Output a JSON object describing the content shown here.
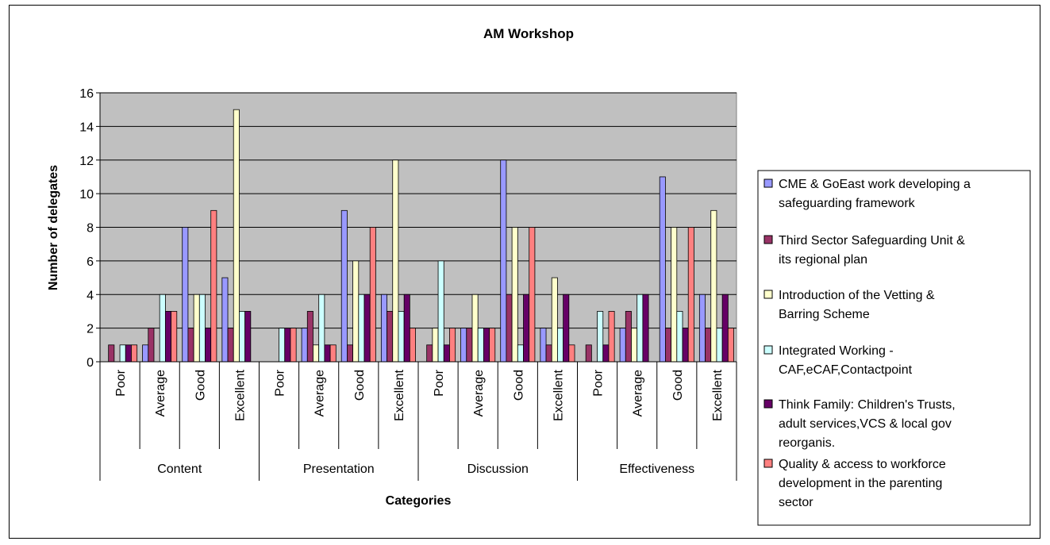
{
  "chart_data": {
    "type": "bar",
    "title": "AM Workshop",
    "xlabel": "Categories",
    "ylabel": "Number of delegates",
    "ylim": [
      0,
      16
    ],
    "yticks": [
      0,
      2,
      4,
      6,
      8,
      10,
      12,
      14,
      16
    ],
    "grid": true,
    "legend_position": "right",
    "groups": [
      {
        "label": "Content",
        "ratings": [
          "Poor",
          "Average",
          "Good",
          "Excellent"
        ]
      },
      {
        "label": "Presentation",
        "ratings": [
          "Poor",
          "Average",
          "Good",
          "Excellent"
        ]
      },
      {
        "label": "Discussion",
        "ratings": [
          "Poor",
          "Average",
          "Good",
          "Excellent"
        ]
      },
      {
        "label": "Effectiveness",
        "ratings": [
          "Poor",
          "Average",
          "Good",
          "Excellent"
        ]
      }
    ],
    "series": [
      {
        "name": "CME & GoEast work developing a safeguarding framework",
        "color": "#9999ff",
        "values": [
          0,
          1,
          8,
          5,
          0,
          2,
          9,
          4,
          0,
          2,
          12,
          2,
          0,
          2,
          11,
          4
        ]
      },
      {
        "name": "Third Sector Safeguarding Unit & its regional plan",
        "color": "#993366",
        "values": [
          1,
          2,
          2,
          2,
          0,
          3,
          1,
          3,
          1,
          2,
          4,
          1,
          1,
          3,
          2,
          2
        ]
      },
      {
        "name": "Introduction of the Vetting & Barring Scheme",
        "color": "#ffffcc",
        "values": [
          0,
          0,
          4,
          15,
          0,
          1,
          6,
          12,
          2,
          4,
          8,
          5,
          0,
          2,
          8,
          9
        ]
      },
      {
        "name": "Integrated Working - CAF,eCAF,Contactpoint",
        "color": "#ccffff",
        "values": [
          1,
          4,
          4,
          3,
          2,
          4,
          4,
          3,
          6,
          2,
          1,
          2,
          3,
          4,
          3,
          2
        ]
      },
      {
        "name": "Think Family: Children's Trusts, adult services,VCS & local gov reorganis.",
        "color": "#660066",
        "values": [
          1,
          3,
          2,
          3,
          2,
          1,
          4,
          4,
          1,
          2,
          4,
          4,
          1,
          4,
          2,
          4
        ]
      },
      {
        "name": "Quality & access to workforce development in the parenting sector",
        "color": "#ff8080",
        "values": [
          1,
          3,
          9,
          0,
          2,
          1,
          8,
          2,
          2,
          2,
          8,
          1,
          3,
          0,
          8,
          2
        ]
      }
    ]
  }
}
